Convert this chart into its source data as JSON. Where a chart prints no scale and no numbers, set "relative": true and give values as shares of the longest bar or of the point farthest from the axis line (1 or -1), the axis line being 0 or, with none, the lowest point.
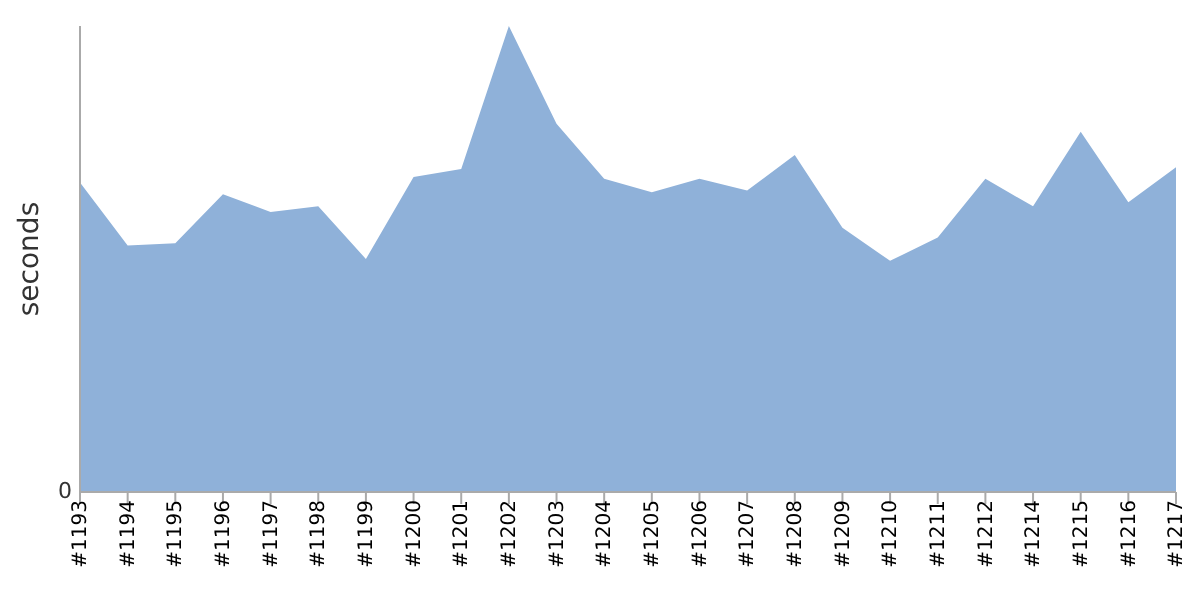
{
  "chart_data": {
    "type": "area",
    "relative": true,
    "ylabel": "seconds",
    "annotations": [
      "0"
    ],
    "categories": [
      "#1193",
      "#1194",
      "#1195",
      "#1196",
      "#1197",
      "#1198",
      "#1199",
      "#1200",
      "#1201",
      "#1202",
      "#1203",
      "#1204",
      "#1205",
      "#1206",
      "#1207",
      "#1208",
      "#1209",
      "#1210",
      "#1211",
      "#1212",
      "#1214",
      "#1215",
      "#1216",
      "#1217"
    ],
    "color": "#8fb1d9",
    "values": [
      0.664,
      0.529,
      0.534,
      0.639,
      0.601,
      0.613,
      0.5,
      0.676,
      0.693,
      1,
      0.79,
      0.672,
      0.643,
      0.672,
      0.647,
      0.723,
      0.567,
      0.496,
      0.546,
      0.672,
      0.613,
      0.773,
      0.622,
      0.697
    ],
    "grid": false
  }
}
